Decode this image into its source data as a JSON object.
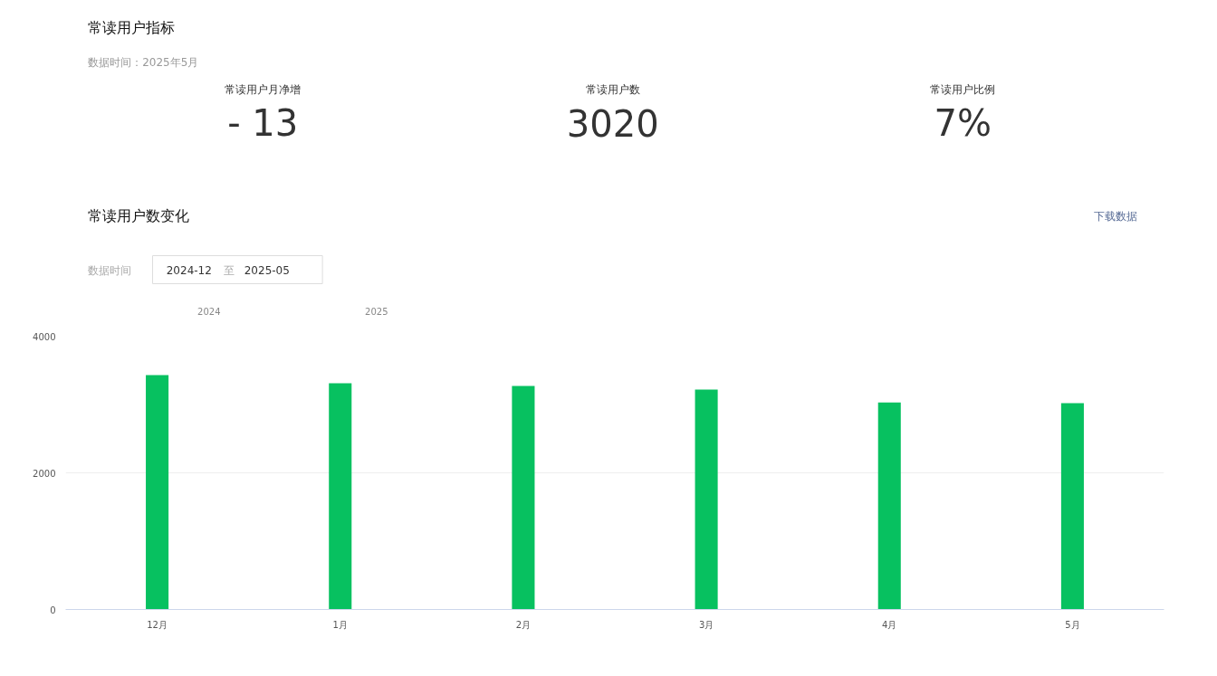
{
  "chart_data": [
    {
      "type": "other",
      "title": "常读用户指标",
      "subtitle": "数据时间：2025年5月",
      "categories": [
        "常读用户月净增",
        "常读用户数",
        "常读用户比例"
      ],
      "values": [
        -13,
        3020,
        7
      ],
      "value_labels": [
        "- 13",
        "3020",
        "7%"
      ]
    },
    {
      "type": "bar",
      "title": "常读用户数变化",
      "categories": [
        "12月",
        "1月",
        "2月",
        "3月",
        "4月",
        "5月"
      ],
      "values": [
        3430,
        3310,
        3270,
        3220,
        3030,
        3020
      ],
      "color": "#07c160",
      "ylim": [
        0,
        4000
      ],
      "yticks": [
        0,
        2000,
        4000
      ],
      "grid": "y",
      "annotations": [
        "下载数据",
        "数据时间",
        "2024-12",
        "至",
        "2025-05",
        "2024",
        "2025"
      ]
    }
  ]
}
